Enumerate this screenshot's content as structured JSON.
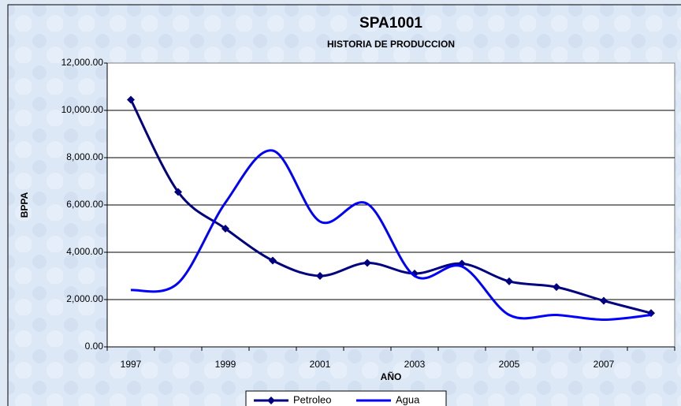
{
  "chart_data": {
    "type": "line",
    "title": "SPA1001",
    "subtitle": "HISTORIA DE PRODUCCION",
    "x_label": "AÑO",
    "y_label": "BPPA",
    "categories": [
      "1997",
      null,
      "1999",
      null,
      "2001",
      null,
      "2003",
      null,
      "2005",
      null,
      "2007",
      null
    ],
    "series": [
      {
        "name": "Petroleo",
        "color": "#000080",
        "marker": "diamond",
        "values": [
          10450,
          6550,
          5000,
          3650,
          3000,
          3550,
          3100,
          3520,
          2770,
          2530,
          1950,
          1430
        ]
      },
      {
        "name": "Agua",
        "color": "#0000ff",
        "values": [
          2400,
          2700,
          6100,
          8300,
          5300,
          6050,
          3000,
          3400,
          1350,
          1350,
          1150,
          1350
        ]
      }
    ],
    "ylim": [
      0,
      12000
    ],
    "yticks": [
      {
        "value": 0,
        "label": "0.00"
      },
      {
        "value": 2000,
        "label": "2,000.00"
      },
      {
        "value": 4000,
        "label": "4,000.00"
      },
      {
        "value": 6000,
        "label": "6,000.00"
      },
      {
        "value": 8000,
        "label": "8,000.00"
      },
      {
        "value": 10000,
        "label": "10,000.00"
      },
      {
        "value": 12000,
        "label": "12,000.00"
      }
    ],
    "grid": true,
    "smooth": true,
    "legend": "bottom"
  }
}
